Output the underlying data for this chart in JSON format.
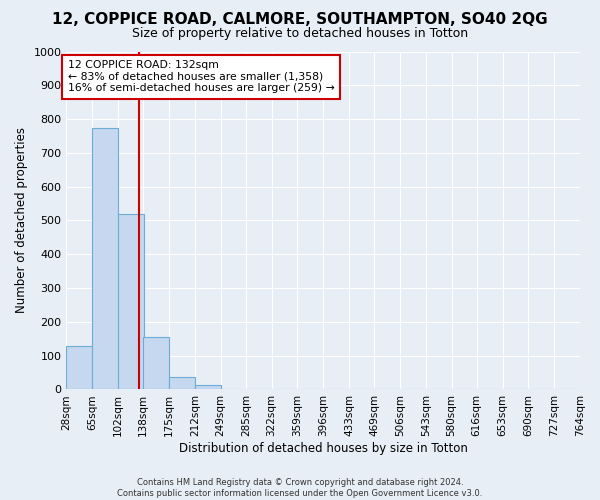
{
  "title": "12, COPPICE ROAD, CALMORE, SOUTHAMPTON, SO40 2QG",
  "subtitle": "Size of property relative to detached houses in Totton",
  "xlabel": "Distribution of detached houses by size in Totton",
  "ylabel": "Number of detached properties",
  "footer_line1": "Contains HM Land Registry data © Crown copyright and database right 2024.",
  "footer_line2": "Contains public sector information licensed under the Open Government Licence v3.0.",
  "bin_edges": [
    28,
    65,
    102,
    138,
    175,
    212,
    249,
    285,
    322,
    359,
    396,
    433,
    469,
    506,
    543,
    580,
    616,
    653,
    690,
    727,
    764
  ],
  "bin_labels": [
    "28sqm",
    "65sqm",
    "102sqm",
    "138sqm",
    "175sqm",
    "212sqm",
    "249sqm",
    "285sqm",
    "322sqm",
    "359sqm",
    "396sqm",
    "433sqm",
    "469sqm",
    "506sqm",
    "543sqm",
    "580sqm",
    "616sqm",
    "653sqm",
    "690sqm",
    "727sqm",
    "764sqm"
  ],
  "bar_heights": [
    130,
    775,
    520,
    155,
    37,
    12,
    0,
    0,
    0,
    0,
    0,
    0,
    0,
    0,
    0,
    0,
    0,
    0,
    0,
    0
  ],
  "bar_color": "#c5d8ef",
  "bar_edge_color": "#6badd6",
  "ylim": [
    0,
    1000
  ],
  "yticks": [
    0,
    100,
    200,
    300,
    400,
    500,
    600,
    700,
    800,
    900,
    1000
  ],
  "property_sqm": 132,
  "red_line_color": "#cc0000",
  "annotation_line1": "12 COPPICE ROAD: 132sqm",
  "annotation_line2": "← 83% of detached houses are smaller (1,358)",
  "annotation_line3": "16% of semi-detached houses are larger (259) →",
  "annotation_box_color": "#ffffff",
  "annotation_border_color": "#cc0000",
  "bg_color": "#e8eef5",
  "plot_bg_color": "#e8eef5",
  "grid_color": "#ffffff",
  "title_fontsize": 11,
  "subtitle_fontsize": 9
}
